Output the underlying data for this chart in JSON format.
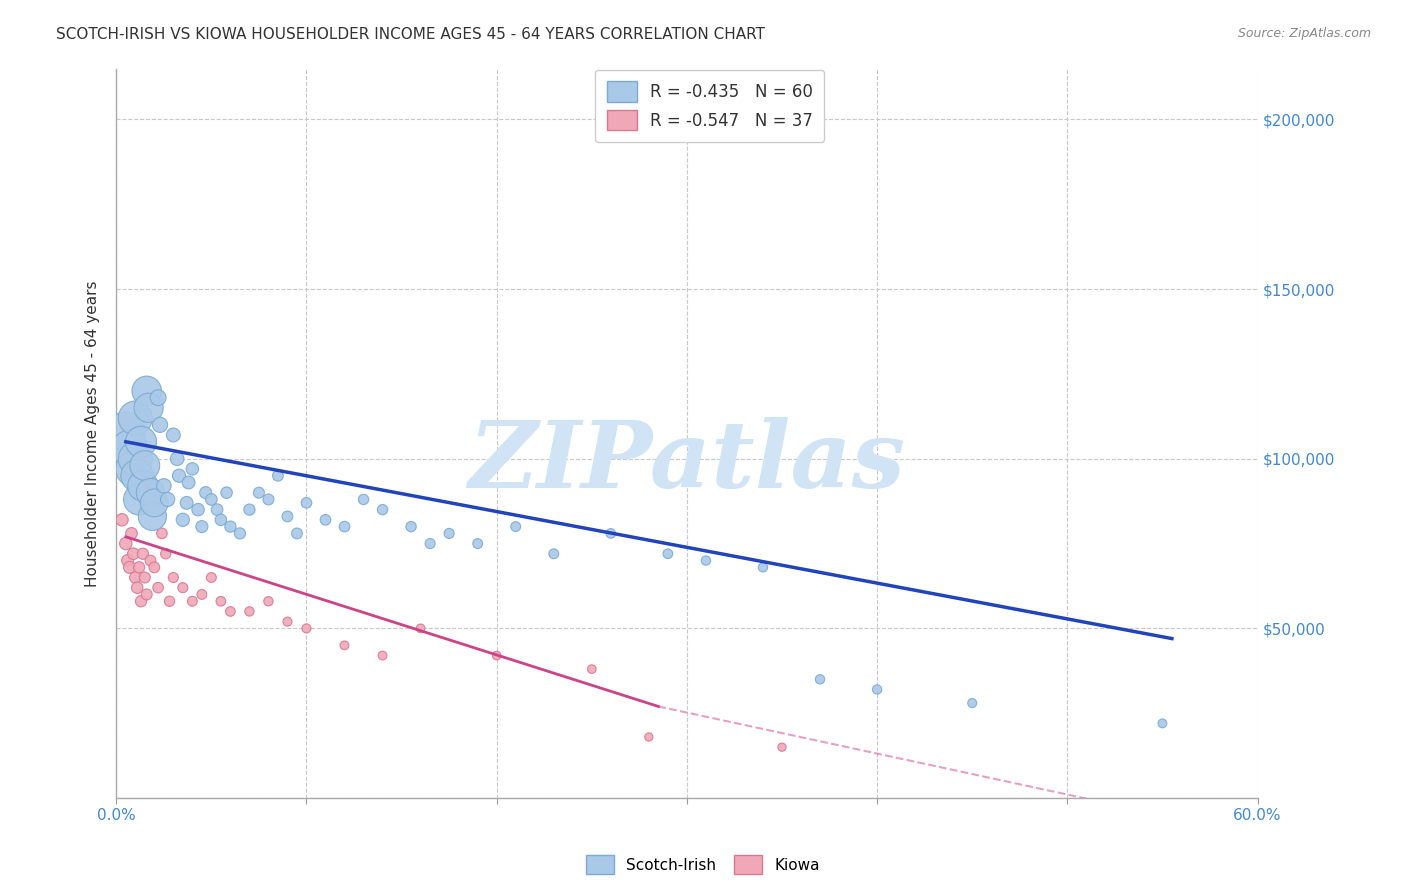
{
  "title": "SCOTCH-IRISH VS KIOWA HOUSEHOLDER INCOME AGES 45 - 64 YEARS CORRELATION CHART",
  "source": "Source: ZipAtlas.com",
  "ylabel": "Householder Income Ages 45 - 64 years",
  "xlim": [
    0.0,
    0.6
  ],
  "ylim": [
    0,
    215000
  ],
  "xticks": [
    0.0,
    0.1,
    0.2,
    0.3,
    0.4,
    0.5,
    0.6
  ],
  "xticklabels": [
    "0.0%",
    "",
    "",
    "",
    "",
    "",
    "60.0%"
  ],
  "yticks": [
    0,
    50000,
    100000,
    150000,
    200000
  ],
  "yticklabels": [
    "",
    "$50,000",
    "$100,000",
    "$150,000",
    "$200,000"
  ],
  "background_color": "#ffffff",
  "grid_color": "#c8c8c8",
  "watermark": "ZIPatlas",
  "watermark_color": "#d0e4f5",
  "legend_r1": "R = -0.435",
  "legend_n1": "N = 60",
  "legend_r2": "R = -0.547",
  "legend_n2": "N = 37",
  "scotch_irish_color": "#aac8e8",
  "scotch_irish_edge": "#7aaad0",
  "kiowa_color": "#f0a8b8",
  "kiowa_edge": "#d87890",
  "blue_line_color": "#2244bb",
  "pink_line_color": "#cc4488",
  "si_x": [
    0.005,
    0.007,
    0.009,
    0.01,
    0.01,
    0.011,
    0.012,
    0.013,
    0.014,
    0.015,
    0.016,
    0.017,
    0.018,
    0.019,
    0.02,
    0.022,
    0.023,
    0.025,
    0.027,
    0.03,
    0.032,
    0.033,
    0.035,
    0.037,
    0.038,
    0.04,
    0.043,
    0.045,
    0.047,
    0.05,
    0.053,
    0.055,
    0.058,
    0.06,
    0.065,
    0.07,
    0.075,
    0.08,
    0.085,
    0.09,
    0.095,
    0.1,
    0.11,
    0.12,
    0.13,
    0.14,
    0.155,
    0.165,
    0.175,
    0.19,
    0.21,
    0.23,
    0.26,
    0.29,
    0.31,
    0.34,
    0.37,
    0.4,
    0.45,
    0.55
  ],
  "si_y": [
    108000,
    103000,
    97000,
    100000,
    112000,
    95000,
    88000,
    105000,
    92000,
    98000,
    120000,
    115000,
    90000,
    83000,
    87000,
    118000,
    110000,
    92000,
    88000,
    107000,
    100000,
    95000,
    82000,
    87000,
    93000,
    97000,
    85000,
    80000,
    90000,
    88000,
    85000,
    82000,
    90000,
    80000,
    78000,
    85000,
    90000,
    88000,
    95000,
    83000,
    78000,
    87000,
    82000,
    80000,
    88000,
    85000,
    80000,
    75000,
    78000,
    75000,
    80000,
    72000,
    78000,
    72000,
    70000,
    68000,
    35000,
    32000,
    28000,
    22000
  ],
  "si_sizes": [
    800,
    700,
    650,
    600,
    600,
    550,
    500,
    500,
    480,
    460,
    450,
    440,
    420,
    410,
    400,
    130,
    120,
    110,
    105,
    100,
    95,
    90,
    90,
    85,
    85,
    80,
    80,
    75,
    75,
    70,
    70,
    68,
    68,
    65,
    65,
    65,
    62,
    62,
    60,
    60,
    60,
    58,
    58,
    58,
    55,
    55,
    55,
    52,
    52,
    50,
    50,
    50,
    48,
    48,
    45,
    45,
    45,
    45,
    42,
    40
  ],
  "ki_x": [
    0.003,
    0.005,
    0.006,
    0.007,
    0.008,
    0.009,
    0.01,
    0.011,
    0.012,
    0.013,
    0.014,
    0.015,
    0.016,
    0.018,
    0.02,
    0.022,
    0.024,
    0.026,
    0.028,
    0.03,
    0.035,
    0.04,
    0.045,
    0.05,
    0.055,
    0.06,
    0.07,
    0.08,
    0.09,
    0.1,
    0.12,
    0.14,
    0.16,
    0.2,
    0.25,
    0.28,
    0.35
  ],
  "ki_y": [
    82000,
    75000,
    70000,
    68000,
    78000,
    72000,
    65000,
    62000,
    68000,
    58000,
    72000,
    65000,
    60000,
    70000,
    68000,
    62000,
    78000,
    72000,
    58000,
    65000,
    62000,
    58000,
    60000,
    65000,
    58000,
    55000,
    55000,
    58000,
    52000,
    50000,
    45000,
    42000,
    50000,
    42000,
    38000,
    18000,
    15000
  ],
  "ki_sizes": [
    80,
    80,
    75,
    75,
    70,
    70,
    68,
    68,
    65,
    65,
    65,
    62,
    62,
    60,
    60,
    58,
    58,
    55,
    55,
    52,
    52,
    50,
    50,
    50,
    48,
    48,
    45,
    45,
    42,
    42,
    40,
    40,
    40,
    38,
    38,
    35,
    35
  ]
}
